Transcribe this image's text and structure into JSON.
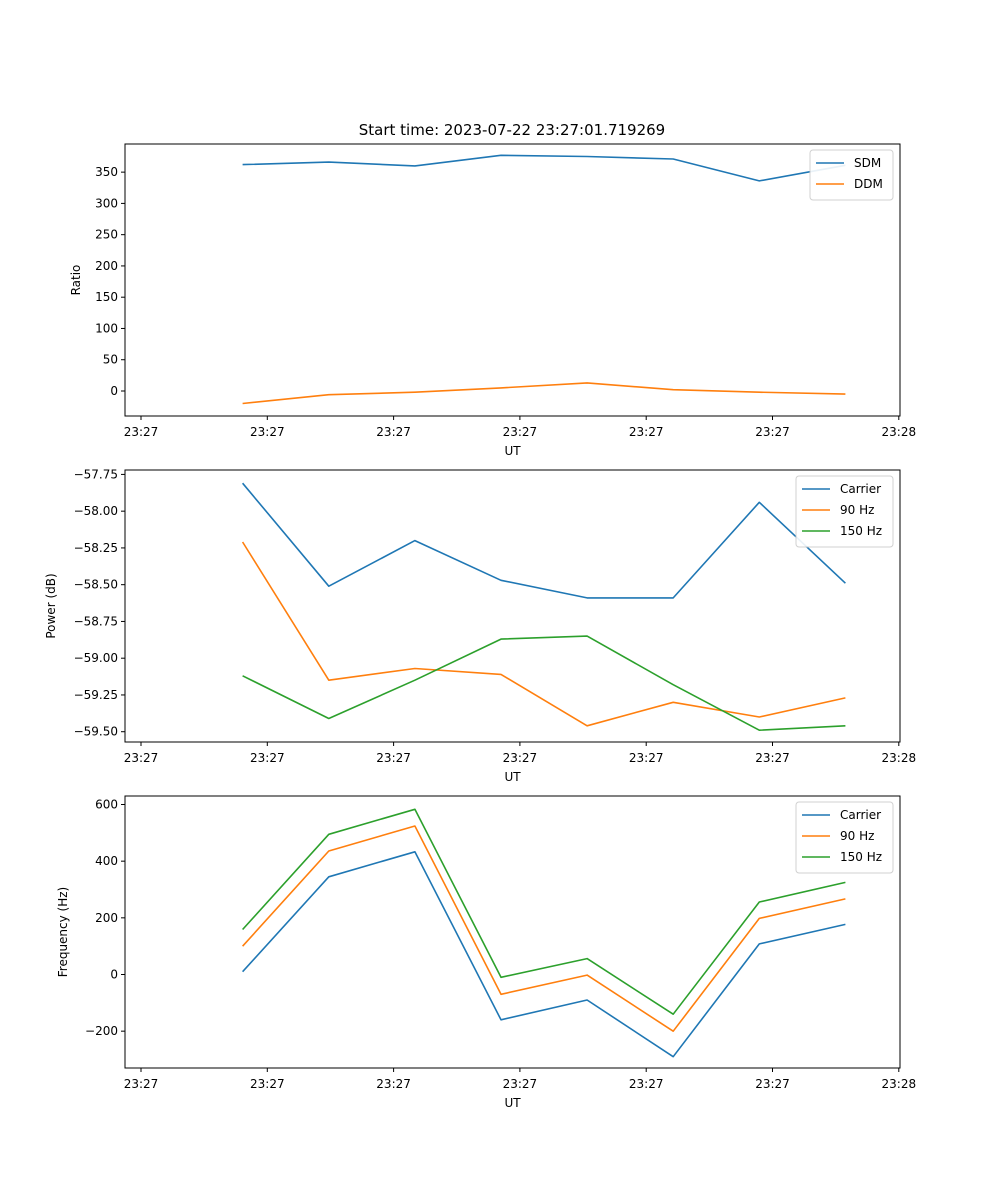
{
  "title": "Start time: 2023-07-22 23:27:01.719269",
  "colors": {
    "c0": "#1f77b4",
    "c1": "#ff7f0e",
    "c2": "#2ca02c"
  },
  "chart_data": [
    {
      "type": "line",
      "xlabel": "UT",
      "ylabel": "Ratio",
      "x_ticks": [
        "23:27",
        "23:27",
        "23:27",
        "23:27",
        "23:27",
        "23:27",
        "23:28"
      ],
      "ylim": [
        -40,
        395
      ],
      "y_ticks": [
        0,
        50,
        100,
        150,
        200,
        250,
        300,
        350
      ],
      "y_tick_labels": [
        "0",
        "50",
        "100",
        "150",
        "200",
        "250",
        "300",
        "350"
      ],
      "legend_position": "top-right",
      "x": [
        1,
        2,
        3,
        4,
        5,
        6,
        7,
        8
      ],
      "series": [
        {
          "name": "SDM",
          "color": "#1f77b4",
          "values": [
            362,
            366,
            360,
            377,
            375,
            371,
            336,
            361
          ]
        },
        {
          "name": "DDM",
          "color": "#ff7f0e",
          "values": [
            -20,
            -6,
            -2,
            5,
            13,
            2,
            -2,
            -5
          ]
        }
      ]
    },
    {
      "type": "line",
      "xlabel": "UT",
      "ylabel": "Power (dB)",
      "x_ticks": [
        "23:27",
        "23:27",
        "23:27",
        "23:27",
        "23:27",
        "23:27",
        "23:28"
      ],
      "ylim": [
        -59.57,
        -57.72
      ],
      "y_ticks": [
        -59.5,
        -59.25,
        -59.0,
        -58.75,
        -58.5,
        -58.25,
        -58.0,
        -57.75
      ],
      "y_tick_labels": [
        "−59.50",
        "−59.25",
        "−59.00",
        "−58.75",
        "−58.50",
        "−58.25",
        "−58.00",
        "−57.75"
      ],
      "legend_position": "top-right",
      "x": [
        1,
        2,
        3,
        4,
        5,
        6,
        7,
        8
      ],
      "series": [
        {
          "name": "Carrier",
          "color": "#1f77b4",
          "values": [
            -57.81,
            -58.51,
            -58.2,
            -58.47,
            -58.59,
            -58.59,
            -57.94,
            -58.49
          ]
        },
        {
          "name": "90 Hz",
          "color": "#ff7f0e",
          "values": [
            -58.21,
            -59.15,
            -59.07,
            -59.11,
            -59.46,
            -59.3,
            -59.4,
            -59.27
          ]
        },
        {
          "name": "150 Hz",
          "color": "#2ca02c",
          "values": [
            -59.12,
            -59.41,
            -59.15,
            -58.87,
            -58.85,
            -59.18,
            -59.49,
            -59.46
          ]
        }
      ]
    },
    {
      "type": "line",
      "xlabel": "UT",
      "ylabel": "Frequency (Hz)",
      "x_ticks": [
        "23:27",
        "23:27",
        "23:27",
        "23:27",
        "23:27",
        "23:27",
        "23:28"
      ],
      "ylim": [
        -330,
        630
      ],
      "y_ticks": [
        -200,
        0,
        200,
        400,
        600
      ],
      "y_tick_labels": [
        "−200",
        "0",
        "200",
        "400",
        "600"
      ],
      "legend_position": "top-right",
      "x": [
        1,
        2,
        3,
        4,
        5,
        6,
        7,
        8
      ],
      "series": [
        {
          "name": "Carrier",
          "color": "#1f77b4",
          "values": [
            10,
            345,
            433,
            -160,
            -90,
            -290,
            108,
            177
          ]
        },
        {
          "name": "90 Hz",
          "color": "#ff7f0e",
          "values": [
            100,
            436,
            524,
            -70,
            -2,
            -200,
            198,
            267
          ]
        },
        {
          "name": "150 Hz",
          "color": "#2ca02c",
          "values": [
            159,
            495,
            583,
            -10,
            56,
            -140,
            256,
            325
          ]
        }
      ]
    }
  ]
}
